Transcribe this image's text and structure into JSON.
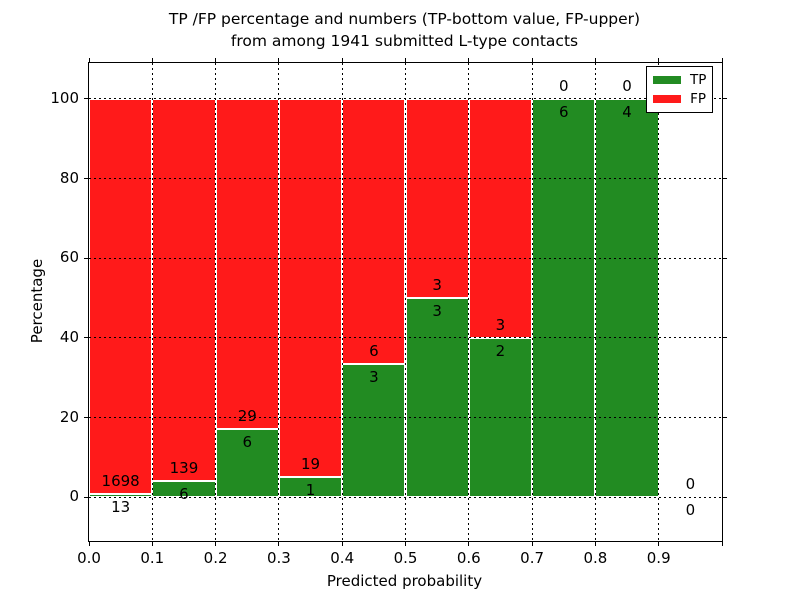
{
  "chart_data": {
    "type": "bar",
    "stacked": true,
    "normalized": "percent",
    "title_line1": "TP /FP percentage and numbers (TP-bottom value, FP-upper)",
    "title_line2": "from among 1941 submitted L-type contacts",
    "xlabel": "Predicted probability",
    "ylabel": "Percentage",
    "xlim": [
      0.0,
      1.0
    ],
    "ylim": [
      -11,
      109
    ],
    "x_tick_labels": [
      "0.0",
      "0.1",
      "0.2",
      "0.3",
      "0.4",
      "0.5",
      "0.6",
      "0.7",
      "0.8",
      "0.9"
    ],
    "x_tick_extra_marks": [
      1.0
    ],
    "y_ticks": [
      0,
      20,
      40,
      60,
      80,
      100
    ],
    "grid": {
      "style": "dotted",
      "color": "#000000",
      "over_bars": true
    },
    "bin_width": 0.1,
    "bins": [
      {
        "range": [
          0.0,
          0.1
        ],
        "tp": 13,
        "fp": 1698,
        "tp_pct": 0.76,
        "fp_pct": 99.24
      },
      {
        "range": [
          0.1,
          0.2
        ],
        "tp": 6,
        "fp": 139,
        "tp_pct": 4.14,
        "fp_pct": 95.86
      },
      {
        "range": [
          0.2,
          0.3
        ],
        "tp": 6,
        "fp": 29,
        "tp_pct": 17.14,
        "fp_pct": 82.86
      },
      {
        "range": [
          0.3,
          0.4
        ],
        "tp": 1,
        "fp": 19,
        "tp_pct": 5.0,
        "fp_pct": 95.0
      },
      {
        "range": [
          0.4,
          0.5
        ],
        "tp": 3,
        "fp": 6,
        "tp_pct": 33.33,
        "fp_pct": 66.67
      },
      {
        "range": [
          0.5,
          0.6
        ],
        "tp": 3,
        "fp": 3,
        "tp_pct": 50.0,
        "fp_pct": 50.0
      },
      {
        "range": [
          0.6,
          0.7
        ],
        "tp": 2,
        "fp": 3,
        "tp_pct": 40.0,
        "fp_pct": 60.0
      },
      {
        "range": [
          0.7,
          0.8
        ],
        "tp": 6,
        "fp": 0,
        "tp_pct": 100.0,
        "fp_pct": 0.0
      },
      {
        "range": [
          0.8,
          0.9
        ],
        "tp": 4,
        "fp": 0,
        "tp_pct": 100.0,
        "fp_pct": 0.0
      },
      {
        "range": [
          0.9,
          1.0
        ],
        "tp": 0,
        "fp": 0,
        "tp_pct": null,
        "fp_pct": null
      }
    ],
    "annotation_rule": "FP count above green/red boundary, TP count below it",
    "total_contacts": 1941,
    "series": [
      {
        "name": "TP",
        "color": "#228b22"
      },
      {
        "name": "FP",
        "color": "#ff1a1a"
      }
    ],
    "legend": {
      "position": "upper right",
      "items": [
        {
          "label": "TP",
          "color": "#228b22"
        },
        {
          "label": "FP",
          "color": "#ff1a1a"
        }
      ]
    }
  }
}
